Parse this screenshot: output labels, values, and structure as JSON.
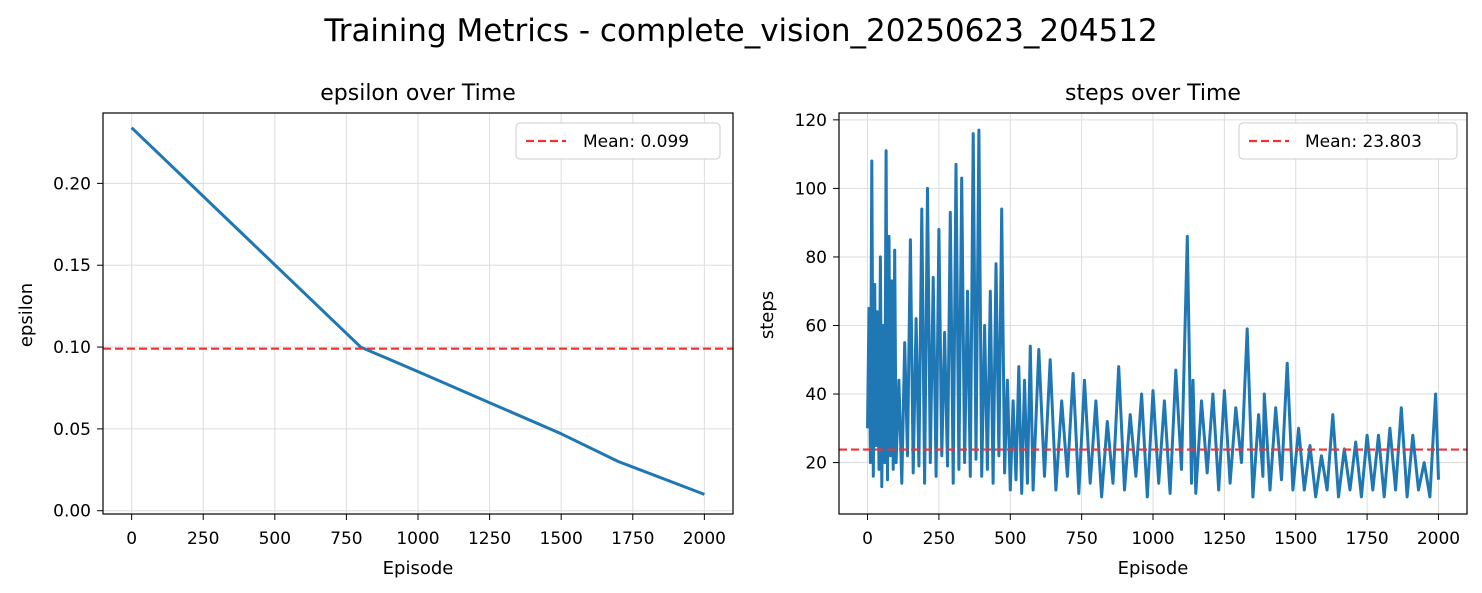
{
  "figure": {
    "title": "Training Metrics - complete_vision_20250623_204512"
  },
  "colors": {
    "line": "#1f77b4",
    "mean": "#f03232",
    "grid": "#dddddd"
  },
  "chart_data": [
    {
      "type": "line",
      "title": "epsilon over Time",
      "xlabel": "Episode",
      "ylabel": "epsilon",
      "xlim": [
        -100,
        2100
      ],
      "ylim": [
        -0.002,
        0.243
      ],
      "xticks": [
        0,
        250,
        500,
        750,
        1000,
        1250,
        1500,
        1750,
        2000
      ],
      "yticks": [
        0.0,
        0.05,
        0.1,
        0.15,
        0.2
      ],
      "ytick_labels": [
        "0.00",
        "0.05",
        "0.10",
        "0.15",
        "0.20"
      ],
      "grid": true,
      "legend_position": "top-right",
      "series": [
        {
          "x": [
            0,
            800,
            1000,
            1250,
            1500,
            1700,
            2000
          ],
          "y": [
            0.234,
            0.1,
            0.085,
            0.066,
            0.047,
            0.03,
            0.01
          ]
        }
      ],
      "mean": {
        "value": 0.099,
        "label": "Mean: 0.099"
      }
    },
    {
      "type": "line",
      "title": "steps over Time",
      "xlabel": "Episode",
      "ylabel": "steps",
      "xlim": [
        -100,
        2100
      ],
      "ylim": [
        5,
        122
      ],
      "xticks": [
        0,
        250,
        500,
        750,
        1000,
        1250,
        1500,
        1750,
        2000
      ],
      "yticks": [
        20,
        40,
        60,
        80,
        100,
        120
      ],
      "ytick_labels": [
        "20",
        "40",
        "60",
        "80",
        "100",
        "120"
      ],
      "grid": true,
      "legend_position": "top-right",
      "series": [
        {
          "x": [
            0,
            5,
            10,
            15,
            20,
            25,
            30,
            35,
            40,
            45,
            50,
            55,
            60,
            65,
            70,
            75,
            80,
            85,
            90,
            95,
            100,
            110,
            120,
            130,
            140,
            150,
            160,
            170,
            180,
            190,
            200,
            210,
            220,
            230,
            240,
            250,
            260,
            270,
            280,
            290,
            300,
            310,
            320,
            330,
            340,
            350,
            360,
            370,
            380,
            390,
            400,
            410,
            420,
            430,
            440,
            450,
            460,
            470,
            480,
            490,
            500,
            510,
            520,
            530,
            540,
            550,
            560,
            570,
            580,
            600,
            620,
            640,
            660,
            680,
            700,
            720,
            740,
            760,
            780,
            800,
            820,
            840,
            860,
            880,
            900,
            920,
            940,
            960,
            980,
            1000,
            1020,
            1040,
            1060,
            1080,
            1100,
            1120,
            1135,
            1140,
            1150,
            1170,
            1190,
            1210,
            1230,
            1250,
            1270,
            1290,
            1310,
            1330,
            1350,
            1370,
            1385,
            1390,
            1410,
            1430,
            1450,
            1470,
            1490,
            1510,
            1530,
            1550,
            1570,
            1590,
            1610,
            1630,
            1650,
            1670,
            1690,
            1710,
            1730,
            1750,
            1770,
            1790,
            1810,
            1830,
            1850,
            1870,
            1890,
            1910,
            1930,
            1950,
            1970,
            1990,
            2000
          ],
          "y": [
            30,
            65,
            20,
            108,
            16,
            72,
            25,
            64,
            18,
            80,
            13,
            60,
            20,
            111,
            15,
            86,
            22,
            73,
            18,
            82,
            20,
            44,
            14,
            55,
            22,
            85,
            17,
            62,
            19,
            94,
            14,
            100,
            20,
            74,
            16,
            88,
            22,
            58,
            19,
            93,
            14,
            107,
            18,
            103,
            20,
            70,
            16,
            116,
            21,
            117,
            16,
            60,
            18,
            70,
            14,
            78,
            22,
            94,
            17,
            44,
            12,
            38,
            15,
            48,
            11,
            44,
            14,
            54,
            12,
            53,
            16,
            50,
            12,
            38,
            16,
            46,
            11,
            44,
            14,
            38,
            10,
            32,
            14,
            48,
            12,
            34,
            16,
            40,
            10,
            41,
            14,
            38,
            11,
            47,
            18,
            86,
            14,
            44,
            11,
            38,
            17,
            40,
            12,
            41,
            14,
            36,
            20,
            59,
            10,
            34,
            16,
            40,
            12,
            36,
            15,
            49,
            12,
            30,
            12,
            25,
            10,
            22,
            12,
            34,
            10,
            24,
            12,
            26,
            10,
            28,
            12,
            28,
            10,
            30,
            12,
            36,
            10,
            28,
            12,
            20,
            10,
            40,
            15
          ]
        }
      ],
      "mean": {
        "value": 23.803,
        "label": "Mean: 23.803"
      }
    }
  ]
}
